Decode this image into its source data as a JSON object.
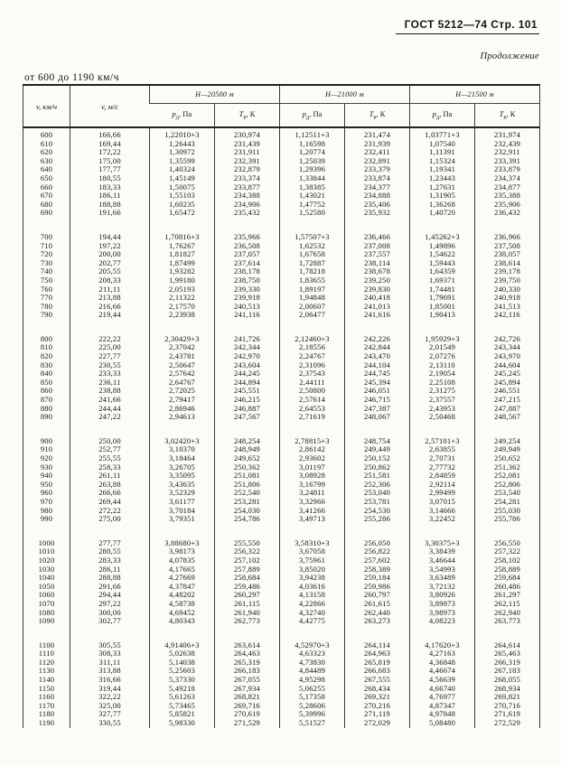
{
  "page": {
    "header_title": "ГОСТ 5212—74 Стр. 101",
    "continuation": "Продолжение",
    "range_label": "от 600 до 1190 км/ч"
  },
  "table": {
    "v_kmh_label": "v, км/ч",
    "v_ms_label": "v, м/с",
    "h_groups": [
      "Н—20500 м",
      "Н—21000 м",
      "Н—21500 м"
    ],
    "p_header": {
      "symbol": "p",
      "subscript": "д",
      "unit": ", Па"
    },
    "t_header": {
      "symbol": "Т",
      "subscript": "в",
      "unit": ", К"
    },
    "groups": [
      [
        [
          "600",
          "166,66",
          "1,22010+3",
          "230,974",
          "1,12511+3",
          "231,474",
          "1,03771+3",
          "231,974"
        ],
        [
          "610",
          "169,44",
          "1,26443",
          "231,439",
          "1,16598",
          "231,939",
          "1,07540",
          "232,439"
        ],
        [
          "620",
          "172,22",
          "1,30972",
          "231,911",
          "1,20774",
          "232,411",
          "1,11391",
          "232,911"
        ],
        [
          "630",
          "175,00",
          "1,35599",
          "232,391",
          "1,25039",
          "232,891",
          "1,15324",
          "233,391"
        ],
        [
          "640",
          "177,77",
          "1,40324",
          "232,879",
          "1,29396",
          "233,379",
          "1,19341",
          "233,879"
        ],
        [
          "650",
          "180,55",
          "1,45149",
          "233,374",
          "1,33844",
          "233,874",
          "1,23443",
          "234,374"
        ],
        [
          "660",
          "183,33",
          "1,50075",
          "233,877",
          "1,38385",
          "234,377",
          "1,27631",
          "234,877"
        ],
        [
          "670",
          "186,11",
          "1,55103",
          "234,388",
          "1,43021",
          "234,888",
          "1,31905",
          "235,388"
        ],
        [
          "680",
          "188,88",
          "1,60235",
          "234,906",
          "1,47752",
          "235,406",
          "1,36268",
          "235,906"
        ],
        [
          "690",
          "191,66",
          "1,65472",
          "235,432",
          "1,52580",
          "235,932",
          "1,40720",
          "236,432"
        ]
      ],
      [
        [
          "700",
          "194,44",
          "1,70816+3",
          "235,966",
          "1,57507+3",
          "236,466",
          "1,45262+3",
          "236,966"
        ],
        [
          "710",
          "197,22",
          "1,76267",
          "236,508",
          "1,62532",
          "237,008",
          "1,49896",
          "237,508"
        ],
        [
          "720",
          "200,00",
          "1,81827",
          "237,057",
          "1,67658",
          "237,557",
          "1,54622",
          "238,057"
        ],
        [
          "730",
          "202,77",
          "1,87499",
          "237,614",
          "1,72887",
          "238,114",
          "1,59443",
          "238,614"
        ],
        [
          "740",
          "205,55",
          "1,93282",
          "238,178",
          "1,78218",
          "238,678",
          "1,64359",
          "239,178"
        ],
        [
          "750",
          "208,33",
          "1,99180",
          "238,750",
          "1,83655",
          "239,250",
          "1,69371",
          "239,750"
        ],
        [
          "760",
          "211,11",
          "2,05193",
          "239,330",
          "1,89197",
          "239,830",
          "1,74481",
          "240,330"
        ],
        [
          "770",
          "213,88",
          "2,11322",
          "239,918",
          "1,94848",
          "240,418",
          "1,79691",
          "240,918"
        ],
        [
          "780",
          "216,66",
          "2,17570",
          "240,513",
          "2,00607",
          "241,013",
          "1,85001",
          "241,513"
        ],
        [
          "790",
          "219,44",
          "2,23938",
          "241,116",
          "2,06477",
          "241,616",
          "1,90413",
          "242,116"
        ]
      ],
      [
        [
          "800",
          "222,22",
          "2,30429+3",
          "241,726",
          "2,12460+3",
          "242,226",
          "1,95929+3",
          "242,726"
        ],
        [
          "810",
          "225,00",
          "2,37042",
          "242,344",
          "2,18556",
          "242,844",
          "2,01549",
          "243,344"
        ],
        [
          "820",
          "227,77",
          "2,43781",
          "242,970",
          "2,24767",
          "243,470",
          "2,07276",
          "243,970"
        ],
        [
          "830",
          "230,55",
          "2,50647",
          "243,604",
          "2,31096",
          "244,104",
          "2,13110",
          "244,604"
        ],
        [
          "840",
          "233,33",
          "2,57642",
          "244,245",
          "2,37543",
          "244,745",
          "2,19054",
          "245,245"
        ],
        [
          "850",
          "236,11",
          "2,64767",
          "244,894",
          "2,44111",
          "245,394",
          "2,25108",
          "245,894"
        ],
        [
          "860",
          "238,88",
          "2,72025",
          "245,551",
          "2,50800",
          "246,051",
          "2,31275",
          "246,551"
        ],
        [
          "870",
          "241,66",
          "2,79417",
          "246,215",
          "2,57614",
          "246,715",
          "2,37557",
          "247,215"
        ],
        [
          "880",
          "244,44",
          "2,86946",
          "246,887",
          "2,64553",
          "247,387",
          "2,43953",
          "247,887"
        ],
        [
          "890",
          "247,22",
          "2,94613",
          "247,567",
          "2,71619",
          "248,067",
          "2,50468",
          "248,567"
        ]
      ],
      [
        [
          "900",
          "250,00",
          "3,02420+3",
          "248,254",
          "2,78815+3",
          "248,754",
          "2,57101+3",
          "249,254"
        ],
        [
          "910",
          "252,77",
          "3,10370",
          "248,949",
          "2,86142",
          "249,449",
          "2,63855",
          "249,949"
        ],
        [
          "920",
          "255,55",
          "3,18464",
          "249,652",
          "2,93602",
          "250,152",
          "2,70731",
          "250,652"
        ],
        [
          "930",
          "258,33",
          "3,26705",
          "250,362",
          "3,01197",
          "250,862",
          "2,77732",
          "251,362"
        ],
        [
          "940",
          "261,11",
          "3,35095",
          "251,081",
          "3,08928",
          "251,581",
          "2,84859",
          "252,081"
        ],
        [
          "950",
          "263,88",
          "3,43635",
          "251,806",
          "3,16799",
          "252,306",
          "2,92114",
          "252,806"
        ],
        [
          "960",
          "266,66",
          "3,52329",
          "252,540",
          "3,24811",
          "253,040",
          "2,99499",
          "253,540"
        ],
        [
          "970",
          "269,44",
          "3,61177",
          "253,281",
          "3,32966",
          "253,781",
          "3,07015",
          "254,281"
        ],
        [
          "980",
          "272,22",
          "3,70184",
          "254,030",
          "3,41266",
          "254,530",
          "3,14666",
          "255,030"
        ],
        [
          "990",
          "275,00",
          "3,79351",
          "254,786",
          "3,49713",
          "255,286",
          "3,22452",
          "255,786"
        ]
      ],
      [
        [
          "1000",
          "277,77",
          "3,88680+3",
          "255,550",
          "3,58310+3",
          "256,050",
          "3,30375+3",
          "256,550"
        ],
        [
          "1010",
          "280,55",
          "3,98173",
          "256,322",
          "3,67058",
          "256,822",
          "3,38439",
          "257,322"
        ],
        [
          "1020",
          "283,33",
          "4,07835",
          "257,102",
          "3,75961",
          "257,602",
          "3,46644",
          "258,102"
        ],
        [
          "1030",
          "286,11",
          "4,17665",
          "257,889",
          "3,85020",
          "258,389",
          "3,54993",
          "258,889"
        ],
        [
          "1040",
          "288,88",
          "4,27669",
          "258,684",
          "3,94238",
          "259,184",
          "3,63489",
          "259,684"
        ],
        [
          "1050",
          "291,66",
          "4,37847",
          "259,486",
          "4,03616",
          "259,986",
          "3,72132",
          "260,486"
        ],
        [
          "1060",
          "294,44",
          "4,48202",
          "260,297",
          "4,13158",
          "260,797",
          "3,80926",
          "261,297"
        ],
        [
          "1070",
          "297,22",
          "4,58738",
          "261,115",
          "4,22866",
          "261,615",
          "3,89873",
          "262,115"
        ],
        [
          "1080",
          "300,00",
          "4,69452",
          "261,940",
          "4,32740",
          "262,440",
          "3,98973",
          "262,940"
        ],
        [
          "1090",
          "302,77",
          "4,80343",
          "262,773",
          "4,42775",
          "263,273",
          "4,08223",
          "263,773"
        ]
      ],
      [
        [
          "1100",
          "305,55",
          "4,91406+3",
          "263,614",
          "4,52970+3",
          "264,114",
          "4,17620+3",
          "264,614"
        ],
        [
          "1110",
          "308,33",
          "5,02638",
          "264,463",
          "4,63323",
          "264,963",
          "4,27163",
          "265,463"
        ],
        [
          "1120",
          "311,11",
          "5,14038",
          "265,319",
          "4,73830",
          "265,819",
          "4,36848",
          "266,319"
        ],
        [
          "1130",
          "313,88",
          "5,25603",
          "266,183",
          "4,84489",
          "266,683",
          "4,46674",
          "267,183"
        ],
        [
          "1140",
          "316,66",
          "5,37330",
          "267,055",
          "4,95298",
          "267,555",
          "4,56639",
          "268,055"
        ],
        [
          "1150",
          "319,44",
          "5,49218",
          "267,934",
          "5,06255",
          "268,434",
          "4,66740",
          "268,934"
        ],
        [
          "1160",
          "322,22",
          "5,61263",
          "268,821",
          "5,17358",
          "269,321",
          "4,76977",
          "269,821"
        ],
        [
          "1170",
          "325,00",
          "5,73465",
          "269,716",
          "5,28606",
          "270,216",
          "4,87347",
          "270,716"
        ],
        [
          "1180",
          "327,77",
          "5,85821",
          "270,619",
          "5,39996",
          "271,119",
          "4,97848",
          "271,619"
        ],
        [
          "1190",
          "330,55",
          "5,98330",
          "271,529",
          "5,51527",
          "272,029",
          "5,08480",
          "272,529"
        ]
      ]
    ]
  }
}
